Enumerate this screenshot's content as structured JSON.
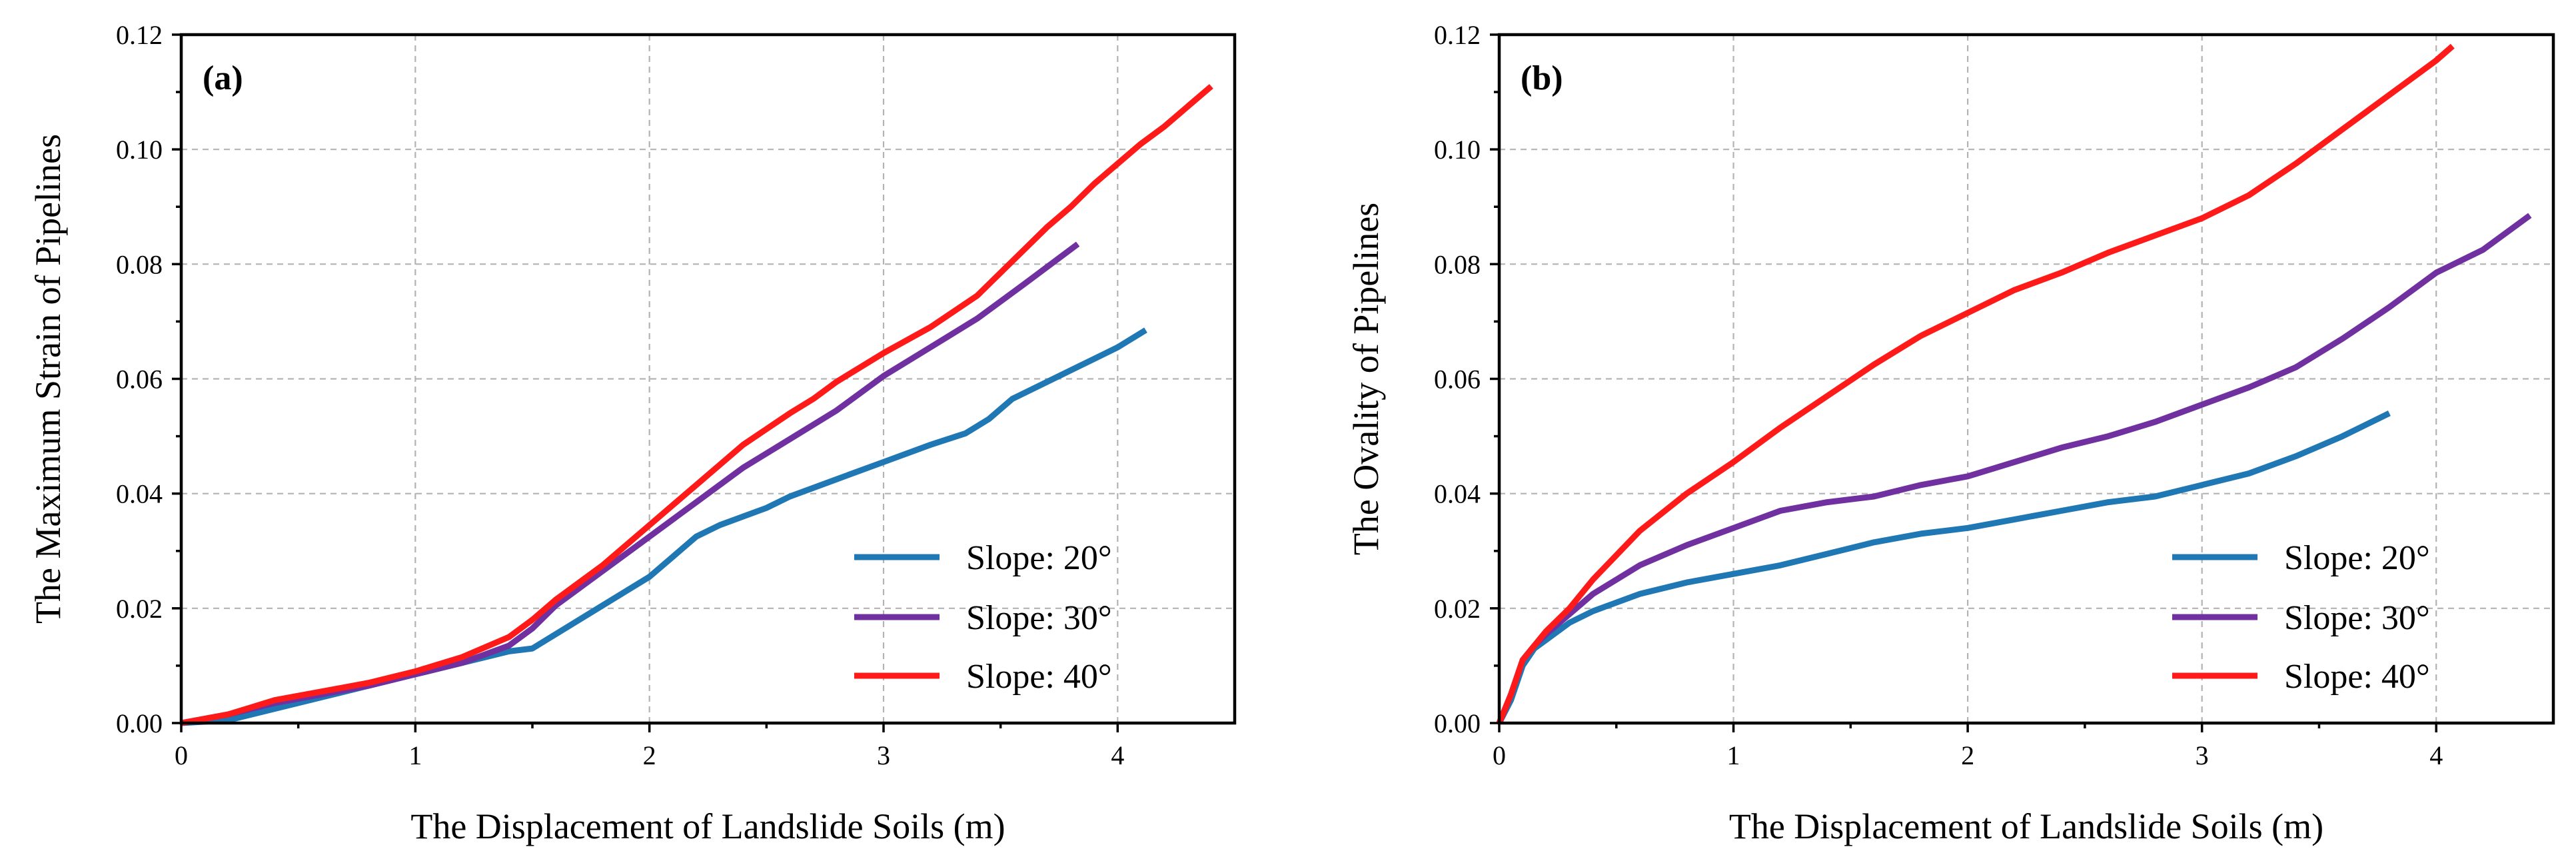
{
  "chart_data": [
    {
      "type": "line",
      "panel_label": "(a)",
      "xlabel": "The Displacement of Landslide Soils (m)",
      "ylabel": "The Maximum Strain of Pipelines",
      "xlim": [
        0,
        4.5
      ],
      "ylim": [
        0,
        0.12
      ],
      "xticks": [
        0,
        1,
        2,
        3,
        4
      ],
      "yticks": [
        0,
        0.02,
        0.04,
        0.06,
        0.08,
        0.1,
        0.12
      ],
      "ytick_labels": [
        "0.00",
        "0.02",
        "0.04",
        "0.06",
        "0.08",
        "0.10",
        "0.12"
      ],
      "grid": true,
      "legend_position": "lower-right",
      "series": [
        {
          "name": "Slope: 20°",
          "color": "#1f77b4",
          "x": [
            0,
            0.2,
            0.4,
            0.6,
            0.8,
            1.0,
            1.2,
            1.4,
            1.5,
            1.6,
            1.8,
            2.0,
            2.1,
            2.2,
            2.3,
            2.5,
            2.6,
            2.8,
            3.0,
            3.2,
            3.35,
            3.45,
            3.55,
            3.7,
            3.8,
            3.9,
            4.0,
            4.12
          ],
          "y": [
            0,
            0.0005,
            0.0025,
            0.0045,
            0.0065,
            0.0085,
            0.0105,
            0.0125,
            0.013,
            0.0155,
            0.0205,
            0.0255,
            0.029,
            0.0325,
            0.0345,
            0.0375,
            0.0395,
            0.0425,
            0.0455,
            0.0485,
            0.0505,
            0.053,
            0.0565,
            0.0595,
            0.0615,
            0.0635,
            0.0655,
            0.0685
          ]
        },
        {
          "name": "Slope: 30°",
          "color": "#7030a0",
          "x": [
            0,
            0.2,
            0.4,
            0.6,
            0.8,
            1.0,
            1.2,
            1.4,
            1.5,
            1.6,
            1.8,
            2.0,
            2.2,
            2.4,
            2.6,
            2.8,
            3.0,
            3.2,
            3.4,
            3.6,
            3.83
          ],
          "y": [
            0,
            0.0015,
            0.0035,
            0.005,
            0.0065,
            0.0085,
            0.0105,
            0.0135,
            0.0165,
            0.0205,
            0.0265,
            0.0325,
            0.0385,
            0.0445,
            0.0495,
            0.0545,
            0.0605,
            0.0655,
            0.0705,
            0.0765,
            0.0835
          ]
        },
        {
          "name": "Slope: 40°",
          "color": "#ff1a1a",
          "x": [
            0,
            0.2,
            0.4,
            0.6,
            0.8,
            1.0,
            1.2,
            1.4,
            1.5,
            1.6,
            1.8,
            2.0,
            2.2,
            2.4,
            2.6,
            2.7,
            2.8,
            3.0,
            3.2,
            3.4,
            3.5,
            3.6,
            3.7,
            3.8,
            3.9,
            4.0,
            4.1,
            4.2,
            4.3,
            4.4
          ],
          "y": [
            0,
            0.0015,
            0.004,
            0.0055,
            0.007,
            0.009,
            0.0115,
            0.015,
            0.018,
            0.0215,
            0.0275,
            0.0345,
            0.0415,
            0.0485,
            0.054,
            0.0565,
            0.0595,
            0.0645,
            0.069,
            0.0745,
            0.0785,
            0.0825,
            0.0865,
            0.09,
            0.094,
            0.0975,
            0.101,
            0.104,
            0.1075,
            0.111
          ]
        }
      ]
    },
    {
      "type": "line",
      "panel_label": "(b)",
      "xlabel": "The Displacement of Landslide Soils (m)",
      "ylabel": "The Ovality of Pipelines",
      "xlim": [
        0,
        4.5
      ],
      "ylim": [
        0,
        0.12
      ],
      "xticks": [
        0,
        1,
        2,
        3,
        4
      ],
      "yticks": [
        0,
        0.02,
        0.04,
        0.06,
        0.08,
        0.1,
        0.12
      ],
      "ytick_labels": [
        "0.00",
        "0.02",
        "0.04",
        "0.06",
        "0.08",
        "0.10",
        "0.12"
      ],
      "grid": true,
      "legend_position": "lower-right",
      "series": [
        {
          "name": "Slope: 20°",
          "color": "#1f77b4",
          "x": [
            0,
            0.05,
            0.1,
            0.15,
            0.2,
            0.3,
            0.4,
            0.6,
            0.8,
            1.0,
            1.2,
            1.4,
            1.6,
            1.8,
            2.0,
            2.2,
            2.4,
            2.6,
            2.8,
            3.0,
            3.2,
            3.4,
            3.6,
            3.8
          ],
          "y": [
            0,
            0.004,
            0.01,
            0.013,
            0.0145,
            0.0175,
            0.0195,
            0.0225,
            0.0245,
            0.026,
            0.0275,
            0.0295,
            0.0315,
            0.033,
            0.034,
            0.0355,
            0.037,
            0.0385,
            0.0395,
            0.0415,
            0.0435,
            0.0465,
            0.05,
            0.054
          ]
        },
        {
          "name": "Slope: 30°",
          "color": "#7030a0",
          "x": [
            0,
            0.05,
            0.1,
            0.15,
            0.2,
            0.3,
            0.4,
            0.6,
            0.8,
            1.0,
            1.2,
            1.4,
            1.6,
            1.8,
            2.0,
            2.2,
            2.4,
            2.6,
            2.8,
            3.0,
            3.2,
            3.4,
            3.6,
            3.8,
            4.0,
            4.2,
            4.4
          ],
          "y": [
            0,
            0.005,
            0.011,
            0.0135,
            0.0155,
            0.019,
            0.0225,
            0.0275,
            0.031,
            0.034,
            0.037,
            0.0385,
            0.0395,
            0.0415,
            0.043,
            0.0455,
            0.048,
            0.05,
            0.0525,
            0.0555,
            0.0585,
            0.062,
            0.067,
            0.0725,
            0.0785,
            0.0825,
            0.0885
          ]
        },
        {
          "name": "Slope: 40°",
          "color": "#ff1a1a",
          "x": [
            0,
            0.05,
            0.1,
            0.15,
            0.2,
            0.3,
            0.4,
            0.6,
            0.8,
            1.0,
            1.2,
            1.4,
            1.6,
            1.8,
            2.0,
            2.2,
            2.4,
            2.6,
            2.8,
            3.0,
            3.2,
            3.4,
            3.6,
            3.8,
            4.0,
            4.07
          ],
          "y": [
            0,
            0.005,
            0.011,
            0.0135,
            0.016,
            0.02,
            0.025,
            0.0335,
            0.04,
            0.0455,
            0.0515,
            0.057,
            0.0625,
            0.0675,
            0.0715,
            0.0755,
            0.0785,
            0.082,
            0.085,
            0.088,
            0.092,
            0.0975,
            0.1035,
            0.1095,
            0.1155,
            0.118
          ]
        }
      ]
    }
  ]
}
